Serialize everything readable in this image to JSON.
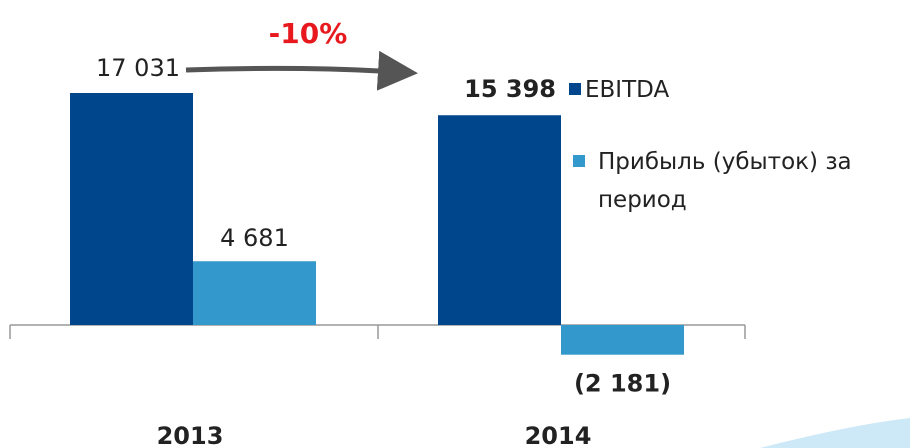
{
  "chart_data": {
    "type": "bar",
    "annotation": "-10%",
    "categories": [
      "2013",
      "2014"
    ],
    "series": [
      {
        "name": "EBITDA",
        "color": "#00468c",
        "values": [
          17031,
          15398
        ],
        "value_labels": [
          "17 031",
          "15 398"
        ]
      },
      {
        "name": "Прибыль (убыток) за период",
        "color": "#3399cc",
        "values": [
          4681,
          -2181
        ],
        "value_labels": [
          "4 681",
          "(2 181)"
        ]
      }
    ]
  }
}
